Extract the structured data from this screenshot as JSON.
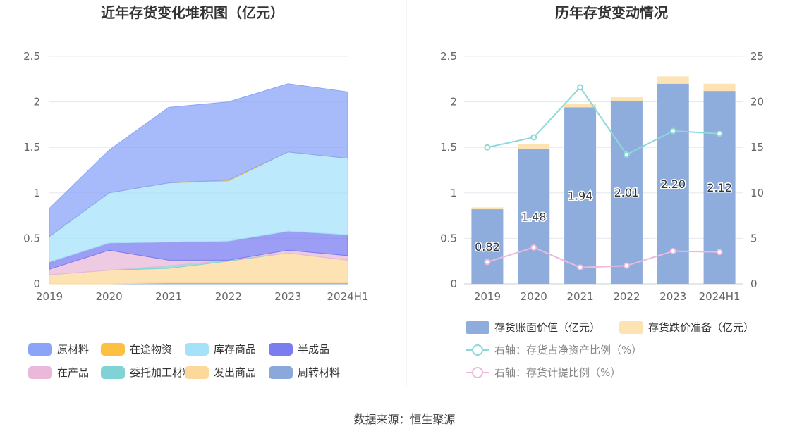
{
  "charts": {
    "left": {
      "title": "近年存货变化堆积图（亿元）",
      "categories": [
        "2019",
        "2020",
        "2021",
        "2022",
        "2023",
        "2024H1"
      ],
      "y_ticks": [
        "0",
        "0.5",
        "1",
        "1.5",
        "2",
        "2.5"
      ],
      "legend": [
        {
          "name": "原材料",
          "color": "#8aa4f8"
        },
        {
          "name": "在途物资",
          "color": "#fcc143"
        },
        {
          "name": "库存商品",
          "color": "#a6e1fa"
        },
        {
          "name": "半成品",
          "color": "#7b7cf0"
        },
        {
          "name": "在产品",
          "color": "#eab8d9"
        },
        {
          "name": "委托加工材料",
          "color": "#80d3d4"
        },
        {
          "name": "发出商品",
          "color": "#fcd89a"
        },
        {
          "name": "周转材料",
          "color": "#8aa8da"
        }
      ]
    },
    "right": {
      "title": "历年存货变动情况",
      "categories": [
        "2019",
        "2020",
        "2021",
        "2022",
        "2023",
        "2024H1"
      ],
      "y_ticks_left": [
        "0",
        "0.5",
        "1",
        "1.5",
        "2",
        "2.5"
      ],
      "y_ticks_right": [
        "0",
        "5",
        "10",
        "15",
        "20",
        "25"
      ],
      "bar_labels": [
        "0.82",
        "1.48",
        "1.94",
        "2.01",
        "2.20",
        "2.12"
      ],
      "legend": [
        {
          "name": "存货账面价值（亿元）",
          "color": "#8eacdc"
        },
        {
          "name": "存货跌价准备（亿元）",
          "color": "#fde3b4"
        },
        {
          "name": "右轴：存货占净资产比例（%）",
          "color": "#8dd8d8"
        },
        {
          "name": "右轴：存货计提比例（%）",
          "color": "#ecb9dc"
        }
      ]
    }
  },
  "chart_data": [
    {
      "type": "area",
      "title": "近年存货变化堆积图（亿元）",
      "categories": [
        "2019",
        "2020",
        "2021",
        "2022",
        "2023",
        "2024H1"
      ],
      "ylim": [
        0,
        2.5
      ],
      "grid": true,
      "legend_position": "bottom",
      "stacked": true,
      "series": [
        {
          "name": "周转材料",
          "values": [
            0.0,
            0.0,
            0.01,
            0.01,
            0.01,
            0.01
          ]
        },
        {
          "name": "发出商品",
          "values": [
            0.1,
            0.15,
            0.16,
            0.24,
            0.33,
            0.25
          ]
        },
        {
          "name": "委托加工材料",
          "values": [
            0.0,
            0.0,
            0.03,
            0.01,
            0.0,
            0.0
          ]
        },
        {
          "name": "在产品",
          "values": [
            0.06,
            0.22,
            0.06,
            0.0,
            0.03,
            0.05
          ]
        },
        {
          "name": "半成品",
          "values": [
            0.08,
            0.08,
            0.2,
            0.21,
            0.21,
            0.23
          ]
        },
        {
          "name": "库存商品",
          "values": [
            0.28,
            0.55,
            0.65,
            0.66,
            0.87,
            0.84
          ]
        },
        {
          "name": "在途物资",
          "values": [
            0.0,
            0.0,
            0.0,
            0.01,
            0.0,
            0.0
          ]
        },
        {
          "name": "原材料",
          "values": [
            0.31,
            0.47,
            0.83,
            0.86,
            0.75,
            0.73
          ]
        }
      ]
    },
    {
      "type": "bar",
      "title": "历年存货变动情况",
      "categories": [
        "2019",
        "2020",
        "2021",
        "2022",
        "2023",
        "2024H1"
      ],
      "ylim": [
        0,
        2.5
      ],
      "y2lim": [
        0,
        25
      ],
      "grid": true,
      "legend_position": "bottom",
      "stacked": true,
      "series": [
        {
          "name": "存货账面价值（亿元）",
          "values": [
            0.82,
            1.48,
            1.94,
            2.01,
            2.2,
            2.12
          ]
        },
        {
          "name": "存货跌价准备（亿元）",
          "values": [
            0.02,
            0.06,
            0.04,
            0.04,
            0.08,
            0.08
          ]
        },
        {
          "name": "右轴：存货占净资产比例（%）",
          "type": "line",
          "axis": "right",
          "values": [
            15.0,
            16.1,
            21.6,
            14.2,
            16.8,
            16.5
          ]
        },
        {
          "name": "右轴：存货计提比例（%）",
          "type": "line",
          "axis": "right",
          "values": [
            2.4,
            4.0,
            1.8,
            2.0,
            3.6,
            3.5
          ]
        }
      ]
    }
  ],
  "footer": {
    "source": "数据来源：恒生聚源"
  }
}
